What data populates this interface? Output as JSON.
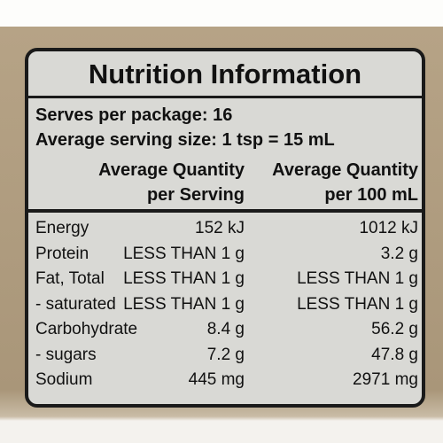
{
  "title": "Nutrition Information",
  "serves": "Serves per package: 16",
  "serving_size": "Average serving size: 1 tsp = 15 mL",
  "columns": [
    [
      "Average Quantity",
      "per Serving"
    ],
    [
      "Average Quantity",
      "per 100 mL"
    ]
  ],
  "table": {
    "rows": [
      [
        "Energy",
        "152 kJ",
        "1012 kJ"
      ],
      [
        "Protein",
        "LESS THAN 1 g",
        "3.2 g"
      ],
      [
        "Fat, Total",
        "LESS THAN 1 g",
        "LESS THAN 1 g"
      ],
      [
        "- saturated",
        "LESS THAN 1 g",
        "LESS THAN 1 g"
      ],
      [
        "Carbohydrate",
        "8.4 g",
        "56.2 g"
      ],
      [
        "- sugars",
        "7.2 g",
        "47.8 g"
      ],
      [
        "Sodium",
        "445 mg",
        "2971 mg"
      ]
    ]
  }
}
